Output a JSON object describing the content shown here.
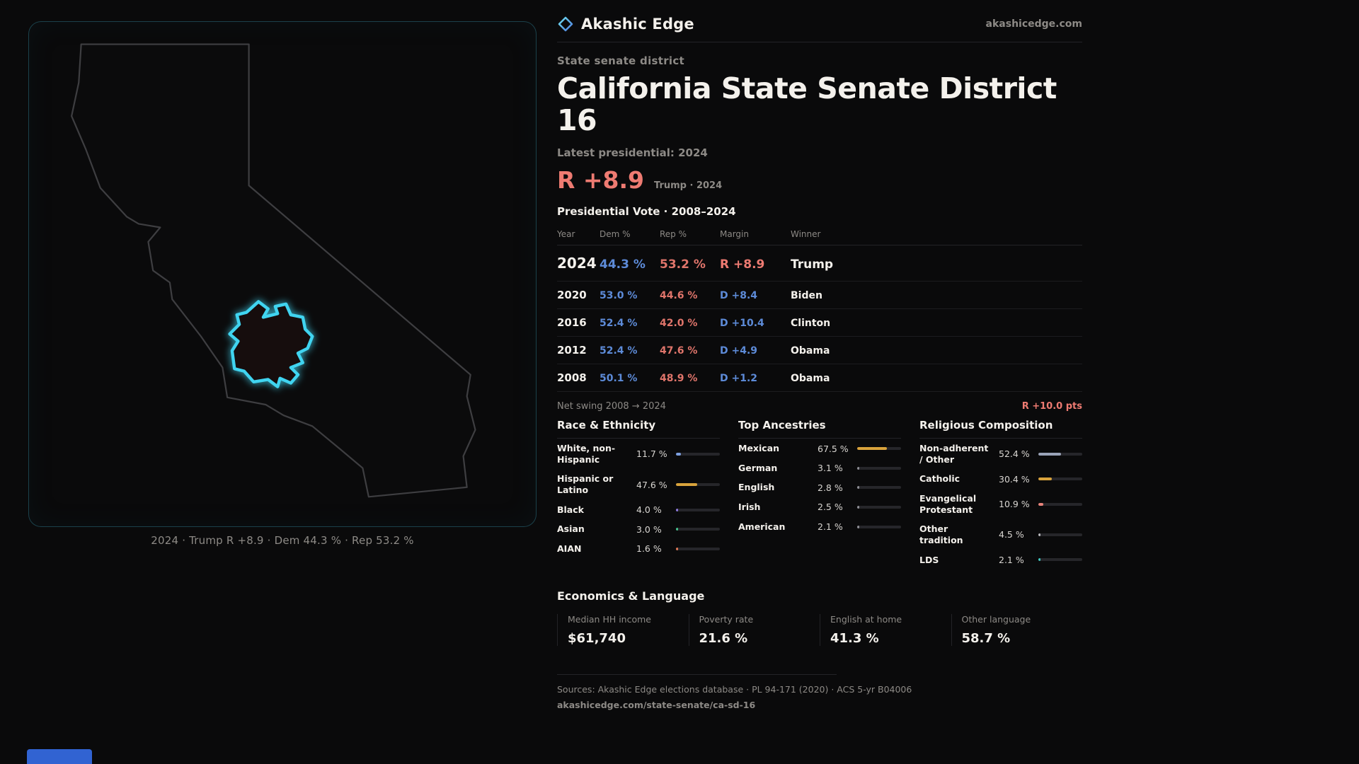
{
  "brand": {
    "name": "Akashic Edge",
    "domain": "akashicedge.com"
  },
  "map": {
    "caption": "2024 · Trump R +8.9 · Dem 44.3 % · Rep 53.2 %",
    "state": "California",
    "district_highlight_color": "#3fd4f0"
  },
  "header": {
    "kicker": "State senate district",
    "title": "California State Senate District 16",
    "latest_label": "Latest presidential: 2024",
    "headline_margin": "R +8.9",
    "headline_note": "Trump · 2024",
    "margin_color": "#ee7b72"
  },
  "vote_table": {
    "title": "Presidential Vote · 2008–2024",
    "columns": [
      "Year",
      "Dem %",
      "Rep %",
      "Margin",
      "Winner"
    ],
    "rows": [
      {
        "year": "2024",
        "dem": "44.3 %",
        "rep": "53.2 %",
        "margin": "R +8.9",
        "winner": "Trump"
      },
      {
        "year": "2020",
        "dem": "53.0 %",
        "rep": "44.6 %",
        "margin": "D +8.4",
        "winner": "Biden"
      },
      {
        "year": "2016",
        "dem": "52.4 %",
        "rep": "42.0 %",
        "margin": "D +10.4",
        "winner": "Clinton"
      },
      {
        "year": "2012",
        "dem": "52.4 %",
        "rep": "47.6 %",
        "margin": "D +4.9",
        "winner": "Obama"
      },
      {
        "year": "2008",
        "dem": "50.1 %",
        "rep": "48.9 %",
        "margin": "D +1.2",
        "winner": "Obama"
      }
    ],
    "net_swing_label": "Net swing 2008 → 2024",
    "net_swing_value": "R +10.0 pts"
  },
  "demographics": [
    {
      "title": "Race & Ethnicity",
      "rows": [
        {
          "label": "White, non-Hispanic",
          "value": "11.7 %",
          "pct": 11.7,
          "color": "#7c9fe0"
        },
        {
          "label": "Hispanic or Latino",
          "value": "47.6 %",
          "pct": 47.6,
          "color": "#d9a33c"
        },
        {
          "label": "Black",
          "value": "4.0 %",
          "pct": 4.0,
          "color": "#8f7ae0"
        },
        {
          "label": "Asian",
          "value": "3.0 %",
          "pct": 3.0,
          "color": "#46c28e"
        },
        {
          "label": "AIAN",
          "value": "1.6 %",
          "pct": 1.6,
          "color": "#e07856"
        }
      ]
    },
    {
      "title": "Top Ancestries",
      "rows": [
        {
          "label": "Mexican",
          "value": "67.5 %",
          "pct": 67.5,
          "color": "#d9a33c"
        },
        {
          "label": "German",
          "value": "3.1 %",
          "pct": 3.1,
          "color": "#8f8f96"
        },
        {
          "label": "English",
          "value": "2.8 %",
          "pct": 2.8,
          "color": "#8f8f96"
        },
        {
          "label": "Irish",
          "value": "2.5 %",
          "pct": 2.5,
          "color": "#8f8f96"
        },
        {
          "label": "American",
          "value": "2.1 %",
          "pct": 2.1,
          "color": "#8f8f96"
        }
      ]
    },
    {
      "title": "Religious Composition",
      "rows": [
        {
          "label": "Non-adherent / Other",
          "value": "52.4 %",
          "pct": 52.4,
          "color": "#9aa3b8"
        },
        {
          "label": "Catholic",
          "value": "30.4 %",
          "pct": 30.4,
          "color": "#d9a33c"
        },
        {
          "label": "Evangelical Protestant",
          "value": "10.9 %",
          "pct": 10.9,
          "color": "#e8837a"
        },
        {
          "label": "Other tradition",
          "value": "4.5 %",
          "pct": 4.5,
          "color": "#b8b8bc"
        },
        {
          "label": "LDS",
          "value": "2.1 %",
          "pct": 2.1,
          "color": "#3fc8c0"
        }
      ]
    }
  ],
  "economics": {
    "title": "Economics & Language",
    "stats": [
      {
        "label": "Median HH income",
        "value": "$61,740"
      },
      {
        "label": "Poverty rate",
        "value": "21.6 %"
      },
      {
        "label": "English at home",
        "value": "41.3 %"
      },
      {
        "label": "Other language",
        "value": "58.7 %"
      }
    ]
  },
  "footer": {
    "sources": "Sources: Akashic Edge elections database · PL 94-171 (2020) · ACS 5-yr B04006",
    "permalink": "akashicedge.com/state-senate/ca-sd-16"
  }
}
